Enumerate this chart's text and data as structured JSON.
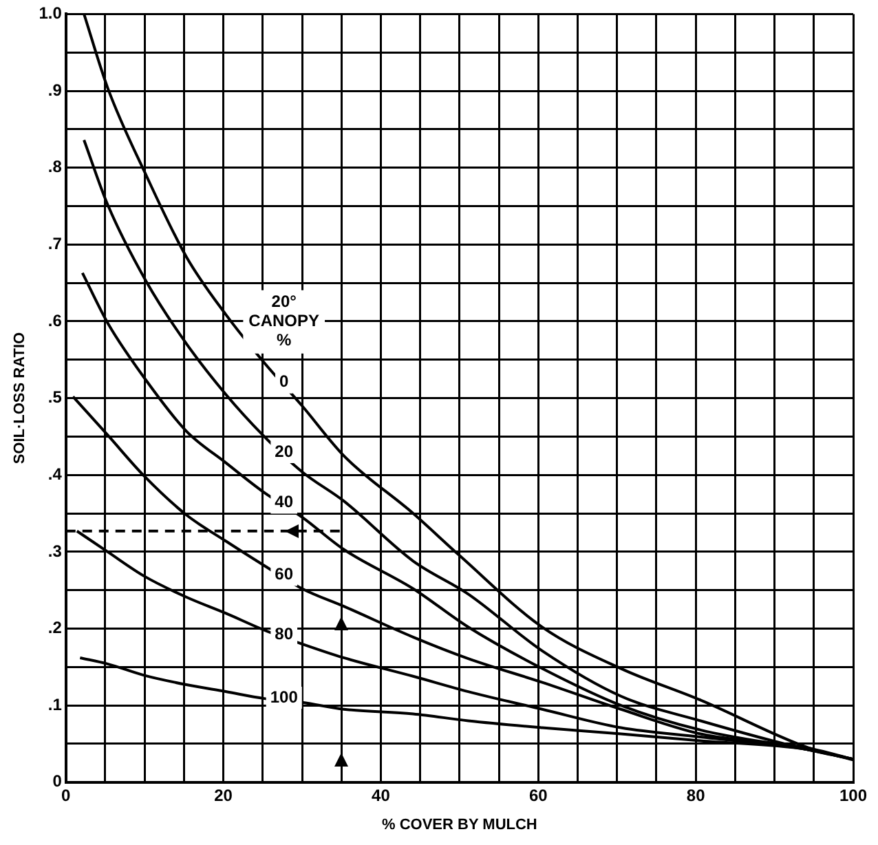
{
  "chart_data": {
    "type": "line",
    "xlabel": "% COVER BY MULCH",
    "ylabel": "SOIL·LOSS RATIO",
    "legend_title": "20° CANOPY %",
    "marker": "none",
    "grid": true,
    "xlim": [
      0,
      100
    ],
    "xticks": [
      0,
      {
        "value": 5,
        "label": null
      },
      {
        "value": 10,
        "label": null
      },
      {
        "value": 15,
        "label": null
      },
      20,
      {
        "value": 25,
        "label": null
      },
      {
        "value": 30,
        "label": null
      },
      {
        "value": 35,
        "label": null
      },
      40,
      {
        "value": 45,
        "label": null
      },
      {
        "value": 50,
        "label": null
      },
      {
        "value": 55,
        "label": null
      },
      60,
      {
        "value": 65,
        "label": null
      },
      {
        "value": 70,
        "label": null
      },
      {
        "value": 75,
        "label": null
      },
      80,
      {
        "value": 85,
        "label": null
      },
      {
        "value": 90,
        "label": null
      },
      {
        "value": 95,
        "label": null
      },
      100
    ],
    "ylim": [
      0,
      1
    ],
    "yticks": [
      0,
      {
        "value": 0.05,
        "label": null
      },
      {
        "value": 0.1,
        "label": ".1"
      },
      {
        "value": 0.15,
        "label": null
      },
      {
        "value": 0.2,
        "label": ".2"
      },
      {
        "value": 0.25,
        "label": null
      },
      {
        "value": 0.3,
        "label": ".3"
      },
      {
        "value": 0.35,
        "label": null
      },
      {
        "value": 0.4,
        "label": ".4"
      },
      {
        "value": 0.45,
        "label": null
      },
      {
        "value": 0.5,
        "label": ".5"
      },
      {
        "value": 0.55,
        "label": null
      },
      {
        "value": 0.6,
        "label": ".6"
      },
      {
        "value": 0.65,
        "label": null
      },
      {
        "value": 0.7,
        "label": ".7"
      },
      {
        "value": 0.75,
        "label": null
      },
      {
        "value": 0.8,
        "label": ".8"
      },
      {
        "value": 0.85,
        "label": null
      },
      {
        "value": 0.9,
        "label": ".9"
      },
      {
        "value": 0.95,
        "label": null
      },
      {
        "value": 1,
        "label": "1.0"
      }
    ],
    "series": [
      {
        "name": "0",
        "color": "#000000",
        "x": [
          2.3,
          5.3,
          10.2,
          15.3,
          20.3,
          25.2,
          30,
          35.3,
          44.1,
          49.9,
          60.5,
          70.5,
          80.6,
          94,
          100
        ],
        "values": [
          1.0,
          0.904,
          0.79,
          0.684,
          0.609,
          0.546,
          0.49,
          0.425,
          0.35,
          0.296,
          0.202,
          0.148,
          0.107,
          0.046,
          0.029
        ]
      },
      {
        "name": "20",
        "color": "#000000",
        "x": [
          2.3,
          5.3,
          10.2,
          15.3,
          20.3,
          25,
          30,
          35.3,
          44.1,
          51.1,
          60.5,
          70.5,
          80.6,
          94,
          100
        ],
        "values": [
          0.836,
          0.752,
          0.652,
          0.571,
          0.505,
          0.452,
          0.404,
          0.366,
          0.288,
          0.245,
          0.171,
          0.112,
          0.08,
          0.043,
          0.03
        ]
      },
      {
        "name": "40",
        "color": "#000000",
        "x": [
          2.1,
          5.3,
          10.2,
          15.3,
          20.3,
          25.2,
          30,
          35.3,
          44.1,
          51.1,
          60.5,
          70.5,
          80.6,
          94,
          100
        ],
        "values": [
          0.663,
          0.598,
          0.523,
          0.457,
          0.416,
          0.377,
          0.345,
          0.303,
          0.252,
          0.202,
          0.148,
          0.1,
          0.068,
          0.043,
          0.03
        ]
      },
      {
        "name": "60",
        "color": "#000000",
        "x": [
          0.9,
          5.3,
          10,
          15.3,
          20.3,
          25.2,
          30,
          35.3,
          44.1,
          51.1,
          60.5,
          70.5,
          80.6,
          94,
          100
        ],
        "values": [
          0.502,
          0.452,
          0.398,
          0.348,
          0.314,
          0.282,
          0.252,
          0.229,
          0.189,
          0.161,
          0.13,
          0.095,
          0.063,
          0.045,
          0.03
        ]
      },
      {
        "name": "80",
        "color": "#000000",
        "x": [
          1.4,
          5.3,
          10,
          15.3,
          20.3,
          25.2,
          30,
          35.3,
          44.1,
          51.1,
          60.5,
          70.5,
          80.6,
          94,
          100
        ],
        "values": [
          0.327,
          0.3,
          0.268,
          0.241,
          0.22,
          0.198,
          0.18,
          0.162,
          0.138,
          0.118,
          0.095,
          0.071,
          0.059,
          0.043,
          0.03
        ]
      },
      {
        "name": "100",
        "color": "#000000",
        "x": [
          1.8,
          5.3,
          10,
          15.3,
          20.3,
          25.2,
          30,
          35.3,
          44.1,
          51.1,
          60.5,
          70.5,
          80.6,
          94,
          100
        ],
        "values": [
          0.162,
          0.154,
          0.139,
          0.127,
          0.118,
          0.109,
          0.104,
          0.095,
          0.089,
          0.08,
          0.071,
          0.063,
          0.054,
          0.043,
          0.03
        ]
      },
      {
        "color": "#000000",
        "line_style": "dashed",
        "x": [
          0,
          35
        ],
        "values": [
          0.327,
          0.327
        ]
      }
    ]
  }
}
